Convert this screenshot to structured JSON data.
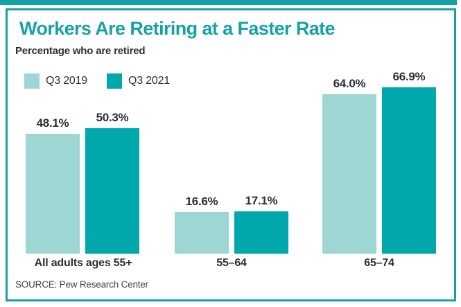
{
  "header": {
    "title": "Workers Are Retiring at a Faster Rate",
    "subtitle": "Percentage who are retired"
  },
  "source": "SOURCE: Pew Research Center",
  "colors": {
    "accent": "#12a2a7",
    "title_text": "#17a2a8",
    "text": "#2d2f34",
    "source_text": "#44464b",
    "background": "#ffffff",
    "series_light": "#9dd6d3",
    "series_dark": "#00a7ab"
  },
  "chart_data": {
    "type": "bar",
    "title": "Workers Are Retiring at a Faster Rate",
    "subtitle": "Percentage who are retired",
    "categories": [
      "All adults ages 55+",
      "55–64",
      "65–74"
    ],
    "series": [
      {
        "name": "Q3 2019",
        "color": "#9dd6d3",
        "values": [
          48.1,
          16.6,
          64.0
        ]
      },
      {
        "name": "Q3 2021",
        "color": "#00a7ab",
        "values": [
          50.3,
          17.1,
          66.9
        ]
      }
    ],
    "value_labels": [
      [
        "48.1%",
        "50.3%"
      ],
      [
        "16.6%",
        "17.1%"
      ],
      [
        "64.0%",
        "66.9%"
      ]
    ],
    "unit": "%",
    "ylim": [
      0,
      70
    ],
    "grid": false,
    "axes_shown": false,
    "legend_position": "top-left",
    "source": "SOURCE: Pew Research Center"
  }
}
